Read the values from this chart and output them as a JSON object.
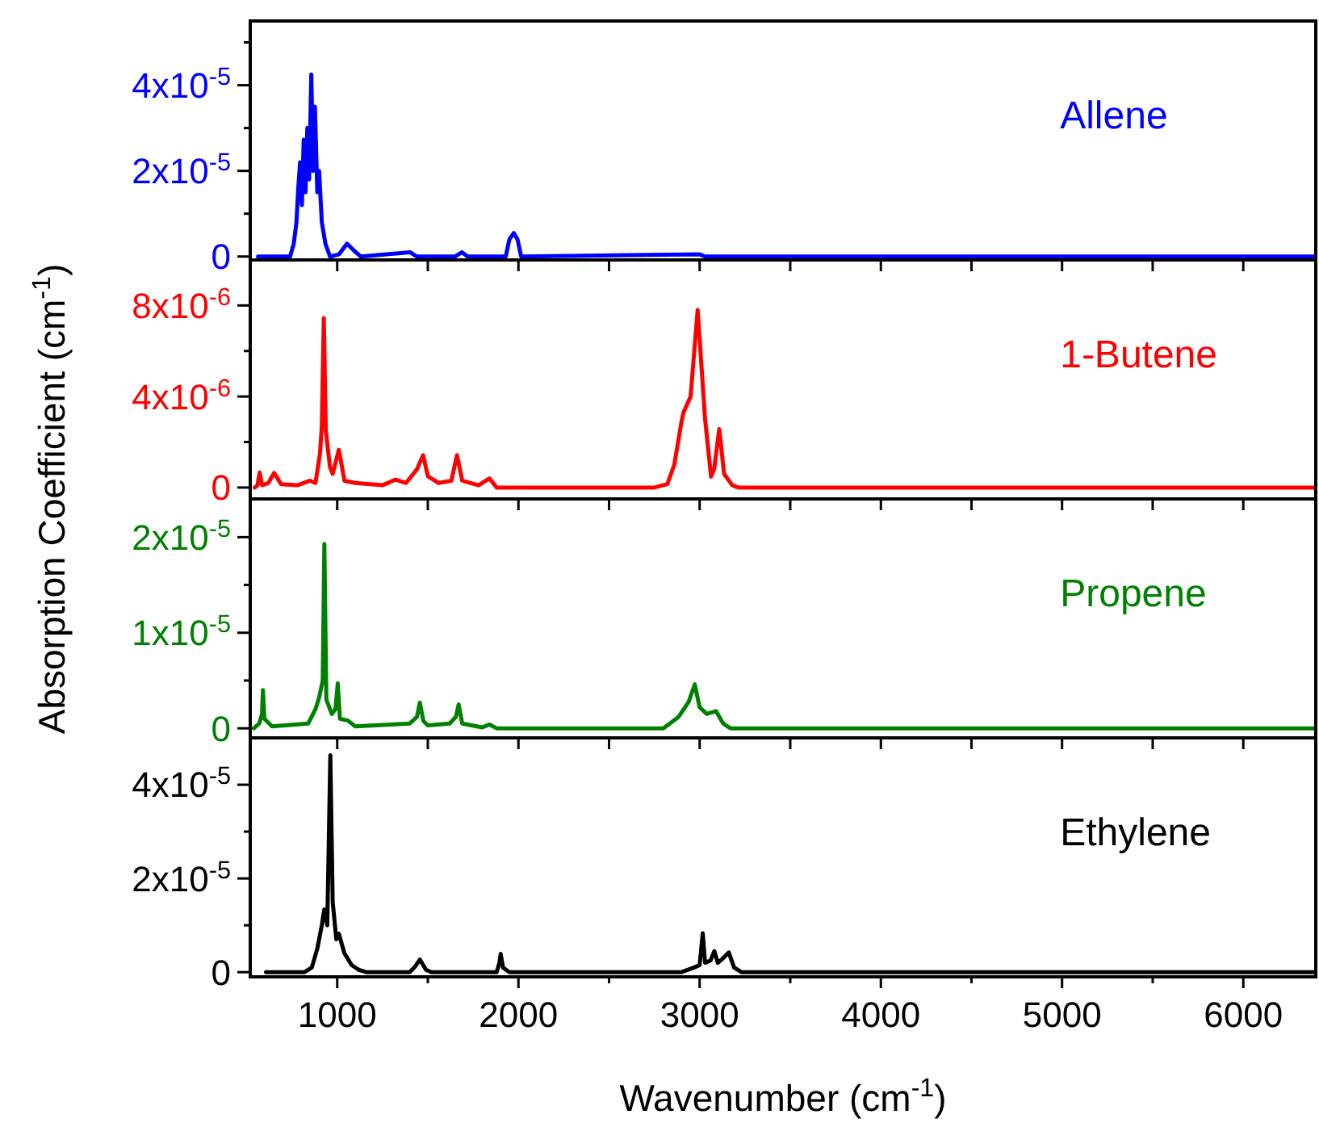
{
  "chart_data": [
    {
      "type": "line",
      "ylabel": "Absorption Coefficient (cm$^{-1}$)",
      "xlim": [
        520,
        6400
      ],
      "xticks": [
        {
          "value": 1000,
          "label": null
        },
        {
          "value": 1500,
          "label": null
        },
        {
          "value": 2000,
          "label": null
        },
        {
          "value": 2500,
          "label": null
        },
        {
          "value": 3000,
          "label": null
        },
        {
          "value": 3500,
          "label": null
        },
        {
          "value": 4000,
          "label": null
        },
        {
          "value": 4500,
          "label": null
        },
        {
          "value": 5000,
          "label": null
        },
        {
          "value": 5500,
          "label": null
        },
        {
          "value": 6000,
          "label": null
        }
      ],
      "ylim": [
        -8e-07,
        5.5e-05
      ],
      "yticks": [
        {
          "value": 0,
          "label": "0"
        },
        {
          "value": 1e-05,
          "label": null
        },
        {
          "value": 2e-05,
          "label": "2x10$^{-5}$"
        },
        {
          "value": 3e-05,
          "label": null
        },
        {
          "value": 4e-05,
          "label": "4x10$^{-5}$"
        },
        {
          "value": 5e-05,
          "label": null
        }
      ],
      "tick_labels": "y",
      "series": [
        {
          "name": "Allene",
          "color": "#0000ff",
          "x": [
            563,
            740,
            760,
            775,
            785,
            795,
            805,
            815,
            825,
            835,
            845,
            857,
            867,
            877,
            890,
            900,
            915,
            935,
            960,
            1010,
            1054,
            1090,
            1130,
            1402,
            1440,
            1650,
            1688,
            1720,
            1930,
            1950,
            1974,
            1995,
            2015,
            3000,
            3030,
            6400
          ],
          "values": [
            0,
            0,
            3e-06,
            8e-06,
            1.6e-05,
            2.2e-05,
            1.2e-05,
            2.73e-05,
            1.5e-05,
            3e-05,
            1.8e-05,
            4.25e-05,
            2e-05,
            3.5e-05,
            1.5e-05,
            2e-05,
            8e-06,
            3e-06,
            0,
            5e-07,
            3e-06,
            1.5e-06,
            0,
            1e-06,
            0,
            0,
            1e-06,
            0,
            0,
            4e-06,
            5.5e-06,
            4e-06,
            0,
            5e-07,
            0,
            0
          ]
        }
      ]
    },
    {
      "type": "line",
      "xlim": [
        520,
        6400
      ],
      "xticks": [
        {
          "value": 1000,
          "label": null
        },
        {
          "value": 1500,
          "label": null
        },
        {
          "value": 2000,
          "label": null
        },
        {
          "value": 2500,
          "label": null
        },
        {
          "value": 3000,
          "label": null
        },
        {
          "value": 3500,
          "label": null
        },
        {
          "value": 4000,
          "label": null
        },
        {
          "value": 4500,
          "label": null
        },
        {
          "value": 5000,
          "label": null
        },
        {
          "value": 5500,
          "label": null
        },
        {
          "value": 6000,
          "label": null
        }
      ],
      "ylim": [
        -5e-07,
        1e-05
      ],
      "yticks": [
        {
          "value": 0,
          "label": "0"
        },
        {
          "value": 2e-06,
          "label": null
        },
        {
          "value": 4e-06,
          "label": "4x10$^{-6}$"
        },
        {
          "value": 6e-06,
          "label": null
        },
        {
          "value": 8e-06,
          "label": "8x10$^{-6}$"
        }
      ],
      "tick_labels": "y",
      "series": [
        {
          "name": "1-Butene",
          "color": "#ff0000",
          "x": [
            545,
            560,
            572,
            585,
            620,
            652,
            690,
            780,
            850,
            880,
            905,
            915,
            926,
            937,
            960,
            975,
            1009,
            1040,
            1100,
            1250,
            1322,
            1380,
            1440,
            1474,
            1500,
            1560,
            1630,
            1661,
            1690,
            1780,
            1840,
            1880,
            2750,
            2822,
            2860,
            2900,
            2911,
            2950,
            2989,
            3030,
            3063,
            3080,
            3108,
            3135,
            3180,
            3215,
            6400
          ],
          "values": [
            0,
            1e-07,
            6.6e-07,
            1e-07,
            2e-07,
            6.4e-07,
            1.5e-07,
            1e-07,
            3e-07,
            2e-07,
            1.5e-06,
            2.7e-06,
            7.45e-06,
            2.5e-06,
            9e-07,
            6e-07,
            1.66e-06,
            3e-07,
            2e-07,
            1e-07,
            3.5e-07,
            2e-07,
            8e-07,
            1.42e-06,
            5e-07,
            2e-07,
            3e-07,
            1.42e-06,
            3e-07,
            1e-07,
            4e-07,
            0,
            0,
            1.5e-07,
            1e-06,
            2.9e-06,
            3.3e-06,
            4e-06,
            7.8e-06,
            3e-06,
            4.8e-07,
            8e-07,
            2.57e-06,
            6e-07,
            1e-07,
            0,
            0
          ]
        }
      ]
    },
    {
      "type": "line",
      "xlim": [
        520,
        6400
      ],
      "xticks": [
        {
          "value": 1000,
          "label": null
        },
        {
          "value": 1500,
          "label": null
        },
        {
          "value": 2000,
          "label": null
        },
        {
          "value": 2500,
          "label": null
        },
        {
          "value": 3000,
          "label": null
        },
        {
          "value": 3500,
          "label": null
        },
        {
          "value": 4000,
          "label": null
        },
        {
          "value": 4500,
          "label": null
        },
        {
          "value": 5000,
          "label": null
        },
        {
          "value": 5500,
          "label": null
        },
        {
          "value": 6000,
          "label": null
        }
      ],
      "ylim": [
        -1e-06,
        2.4e-05
      ],
      "yticks": [
        {
          "value": 0,
          "label": "0"
        },
        {
          "value": 5e-06,
          "label": null
        },
        {
          "value": 1e-05,
          "label": "1x10$^{-5}$"
        },
        {
          "value": 1.5e-05,
          "label": null
        },
        {
          "value": 2e-05,
          "label": "2x10$^{-5}$"
        }
      ],
      "tick_labels": "y",
      "series": [
        {
          "name": "Propene",
          "color": "#008000",
          "x": [
            540,
            570,
            585,
            590,
            598,
            640,
            840,
            880,
            900,
            920,
            929,
            940,
            970,
            990,
            1003,
            1015,
            1060,
            1100,
            1400,
            1440,
            1456,
            1475,
            1500,
            1620,
            1655,
            1670,
            1690,
            1800,
            1840,
            1880,
            2800,
            2884,
            2940,
            2973,
            3000,
            3040,
            3090,
            3130,
            3170,
            6400
          ],
          "values": [
            0,
            5e-07,
            1.5e-06,
            4e-06,
            1e-06,
            2e-07,
            5e-07,
            2e-06,
            3.2e-06,
            5e-06,
            1.93e-05,
            3e-06,
            1.5e-06,
            2e-06,
            4.7e-06,
            1e-06,
            8e-07,
            2e-07,
            5e-07,
            1.2e-06,
            2.7e-06,
            8e-07,
            3e-07,
            5e-07,
            1.2e-06,
            2.5e-06,
            5e-07,
            1e-07,
            4e-07,
            0,
            0,
            1.2e-06,
            2.8e-06,
            4.6e-06,
            2.2e-06,
            1.5e-06,
            1.8e-06,
            5e-07,
            0,
            0
          ]
        }
      ]
    },
    {
      "type": "line",
      "xlabel": "Wavenumber (cm$^{-1}$)",
      "xlim": [
        520,
        6400
      ],
      "xticks": [
        1000,
        {
          "value": 1500,
          "label": null
        },
        2000,
        {
          "value": 2500,
          "label": null
        },
        3000,
        {
          "value": 3500,
          "label": null
        },
        4000,
        {
          "value": 4500,
          "label": null
        },
        5000,
        {
          "value": 5500,
          "label": null
        },
        6000
      ],
      "ylim": [
        -1e-06,
        5e-05
      ],
      "yticks": [
        {
          "value": 0,
          "label": "0"
        },
        {
          "value": 1e-05,
          "label": null
        },
        {
          "value": 2e-05,
          "label": "2x10$^{-5}$"
        },
        {
          "value": 3e-05,
          "label": null
        },
        {
          "value": 4e-05,
          "label": "4x10$^{-5}$"
        }
      ],
      "series": [
        {
          "name": "Ethylene",
          "color": "#000000",
          "x": [
            607,
            820,
            860,
            890,
            915,
            929,
            945,
            962,
            975,
            995,
            1009,
            1040,
            1080,
            1120,
            1160,
            1400,
            1430,
            1456,
            1490,
            1520,
            1880,
            1895,
            1902,
            1915,
            1950,
            2900,
            2970,
            3000,
            3017,
            3030,
            3060,
            3081,
            3100,
            3130,
            3161,
            3190,
            3230,
            6400
          ],
          "values": [
            0,
            0,
            1e-06,
            5e-06,
            1e-05,
            1.34e-05,
            1e-05,
            4.63e-05,
            1.5e-05,
            7e-06,
            8.2e-06,
            4e-06,
            1.5e-06,
            5e-07,
            0,
            0,
            1.2e-06,
            2.7e-06,
            5e-07,
            0,
            0,
            2e-06,
            3.9e-06,
            1e-06,
            0,
            0,
            1e-06,
            1.5e-06,
            8.3e-06,
            2e-06,
            2.5e-06,
            4.5e-06,
            2e-06,
            3e-06,
            4.2e-06,
            1e-06,
            0,
            0
          ]
        }
      ]
    }
  ]
}
